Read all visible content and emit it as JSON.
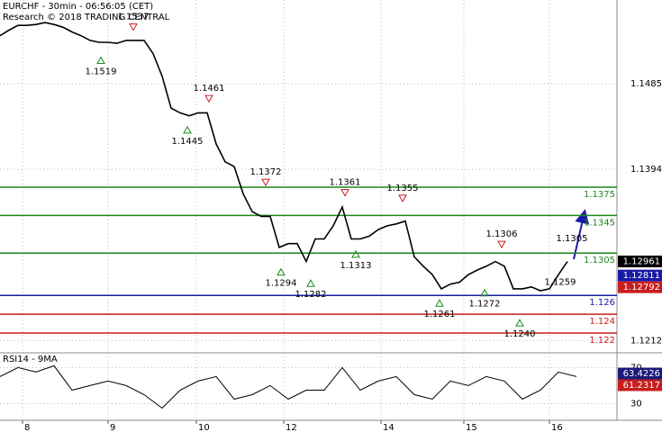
{
  "chart_data": [
    {
      "type": "line",
      "title": "EURCHF - 30min - 06:56:05 (CET)",
      "subtitle": "Research © 2018 TRADING CENTRAL",
      "xlim": [
        0,
        68.5
      ],
      "xticks": [
        {
          "value": 2.5,
          "label": "8"
        },
        {
          "value": 12,
          "label": "9"
        },
        {
          "value": 21.8,
          "label": "10"
        },
        {
          "value": 31.5,
          "label": "12"
        },
        {
          "value": 42.3,
          "label": "14"
        },
        {
          "value": 51.5,
          "label": "15"
        },
        {
          "value": 61,
          "label": "16"
        }
      ],
      "ylim": [
        1.1199,
        1.1574
      ],
      "yticks": [
        1.1485,
        1.1394,
        1.1212
      ],
      "grid": true,
      "series": [
        {
          "color": "#000000",
          "values": [
            1.1536,
            1.1542,
            1.1547,
            1.1547,
            1.1548,
            1.155,
            1.1548,
            1.1545,
            1.154,
            1.1536,
            1.1531,
            1.1529,
            1.1529,
            1.1528,
            1.1531,
            1.1531,
            1.1531,
            1.1517,
            1.1493,
            1.1459,
            1.1454,
            1.1451,
            1.1454,
            1.1454,
            1.1421,
            1.1402,
            1.1397,
            1.1368,
            1.1349,
            1.1344,
            1.1344,
            1.1311,
            1.1315,
            1.1315,
            1.1296,
            1.132,
            1.132,
            1.1334,
            1.1354,
            1.132,
            1.132,
            1.1323,
            1.133,
            1.1334,
            1.1336,
            1.1339,
            1.1301,
            1.1291,
            1.1282,
            1.1267,
            1.1272,
            1.1274,
            1.1282,
            1.1287,
            1.1291,
            1.1296,
            1.1291,
            1.1267,
            1.1267,
            1.1269,
            1.1265,
            1.1267,
            1.1282,
            1.1296
          ]
        }
      ],
      "levels": [
        {
          "value": 1.1375,
          "label": "1.1375",
          "color": "#1a8a1a"
        },
        {
          "value": 1.1345,
          "label": "1.1345",
          "color": "#1a8a1a"
        },
        {
          "value": 1.1305,
          "label": "1.1305",
          "color": "#1a8a1a"
        },
        {
          "value": 1.126,
          "label": "1.126",
          "color": "#1a1aa8"
        },
        {
          "value": 1.124,
          "label": "1.124",
          "color": "#c81e1e"
        },
        {
          "value": 1.122,
          "label": "1.122",
          "color": "#c81e1e"
        }
      ],
      "annotations": [
        {
          "value": 1.1537,
          "label": "1.1537",
          "x": 14.8,
          "kind": "high"
        },
        {
          "value": 1.1519,
          "label": "1.1519",
          "x": 11.2,
          "kind": "low"
        },
        {
          "value": 1.1461,
          "label": "1.1461",
          "x": 23.2,
          "kind": "high"
        },
        {
          "value": 1.1445,
          "label": "1.1445",
          "x": 20.8,
          "kind": "low"
        },
        {
          "value": 1.1372,
          "label": "1.1372",
          "x": 29.5,
          "kind": "high"
        },
        {
          "value": 1.1361,
          "label": "1.1361",
          "x": 38.3,
          "kind": "high"
        },
        {
          "value": 1.1355,
          "label": "1.1355",
          "x": 44.7,
          "kind": "high"
        },
        {
          "value": 1.1306,
          "label": "1.1306",
          "x": 55.7,
          "kind": "high"
        },
        {
          "value": 1.1305,
          "label": "1.1305",
          "x": 63.5,
          "kind": "text"
        },
        {
          "value": 1.1294,
          "label": "1.1294",
          "x": 31.2,
          "kind": "low"
        },
        {
          "value": 1.1282,
          "label": "1.1282",
          "x": 34.5,
          "kind": "low"
        },
        {
          "value": 1.1313,
          "label": "1.1313",
          "x": 39.5,
          "kind": "low"
        },
        {
          "value": 1.1261,
          "label": "1.1261",
          "x": 48.8,
          "kind": "low"
        },
        {
          "value": 1.1272,
          "label": "1.1272",
          "x": 53.8,
          "kind": "low"
        },
        {
          "value": 1.124,
          "label": "1.1240",
          "x": 57.7,
          "kind": "low"
        },
        {
          "value": 1.1259,
          "label": "1.1259",
          "x": 62.2,
          "kind": "text"
        }
      ],
      "price_tags": [
        {
          "value": 1.12961,
          "label": "1.12961",
          "color": "#000000"
        },
        {
          "value": 1.12811,
          "label": "1.12811",
          "color": "#1a1aa8"
        },
        {
          "value": 1.12792,
          "label": "1.12792",
          "color": "#c81e1e"
        }
      ]
    },
    {
      "type": "line",
      "title": "RSI14 - 9MA",
      "xlim": [
        0,
        68.5
      ],
      "ylim": [
        11.5,
        86.4
      ],
      "yticks": [
        70,
        30
      ],
      "series": [
        {
          "color": "#000000",
          "values": [
            60,
            70,
            65,
            72,
            45,
            50,
            55,
            50,
            40,
            25,
            45,
            55,
            60,
            35,
            40,
            50,
            35,
            45,
            45,
            70,
            45,
            55,
            60,
            40,
            35,
            55,
            50,
            60,
            55,
            35,
            45,
            65,
            60
          ]
        }
      ],
      "tags": [
        {
          "value": 63.4226,
          "label": "63.4226",
          "color": "#1a1a7a"
        },
        {
          "value": 61.2317,
          "label": "61.2317",
          "color": "#c81e1e"
        }
      ]
    }
  ]
}
